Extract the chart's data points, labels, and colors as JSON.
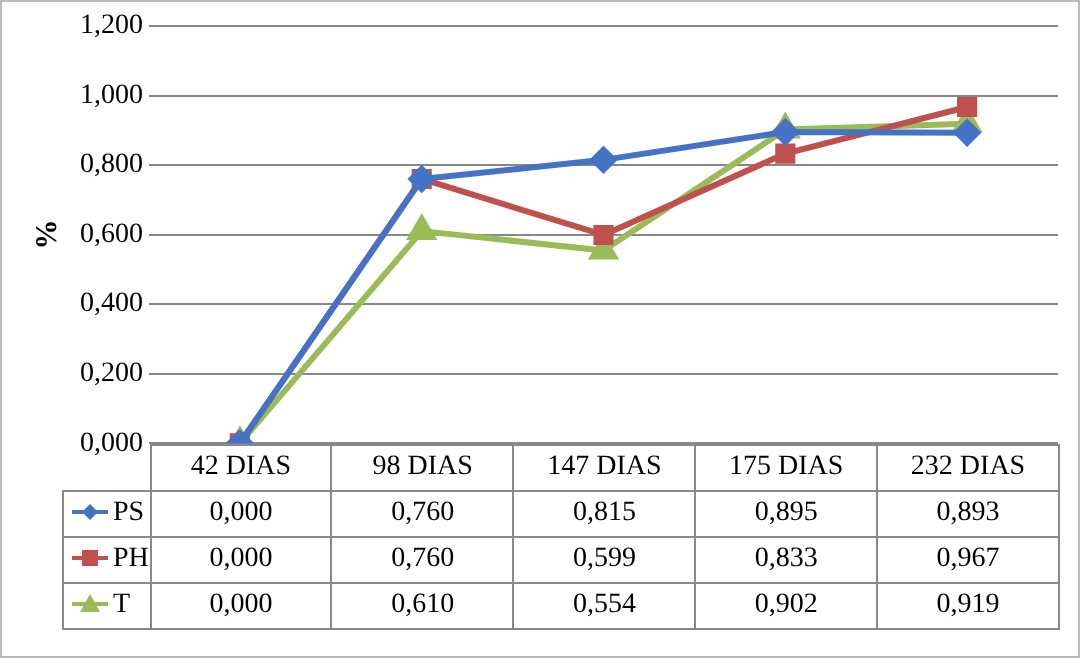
{
  "chart_data": {
    "type": "line",
    "ylabel": "%",
    "categories": [
      "42 DIAS",
      "98 DIAS",
      "147 DIAS",
      "175 DIAS",
      "232 DIAS"
    ],
    "ylim": [
      0,
      1.2
    ],
    "yticks": [
      {
        "value": 0,
        "label": "0,000"
      },
      {
        "value": 0.2,
        "label": "0,200"
      },
      {
        "value": 0.4,
        "label": "0,400"
      },
      {
        "value": 0.6,
        "label": "0,600"
      },
      {
        "value": 0.8,
        "label": "0,800"
      },
      {
        "value": 1,
        "label": "1,000"
      },
      {
        "value": 1.2,
        "label": "1,200"
      }
    ],
    "grid": "y",
    "legend": "bottom",
    "line_style": "solid",
    "series": [
      {
        "name": "PS",
        "color": "#4472c4",
        "marker": "diamond",
        "values": [
          0,
          0.76,
          0.815,
          0.895,
          0.893
        ],
        "value_labels": [
          "0,000",
          "0,760",
          "0,815",
          "0,895",
          "0,893"
        ]
      },
      {
        "name": "PH",
        "color": "#c0504d",
        "marker": "square",
        "values": [
          0,
          0.76,
          0.599,
          0.833,
          0.967
        ],
        "value_labels": [
          "0,000",
          "0,760",
          "0,599",
          "0,833",
          "0,967"
        ]
      },
      {
        "name": "T",
        "color": "#9bbb59",
        "marker": "triangle",
        "values": [
          0,
          0.61,
          0.554,
          0.902,
          0.919
        ],
        "value_labels": [
          "0,000",
          "0,610",
          "0,554",
          "0,902",
          "0,919"
        ]
      }
    ]
  }
}
